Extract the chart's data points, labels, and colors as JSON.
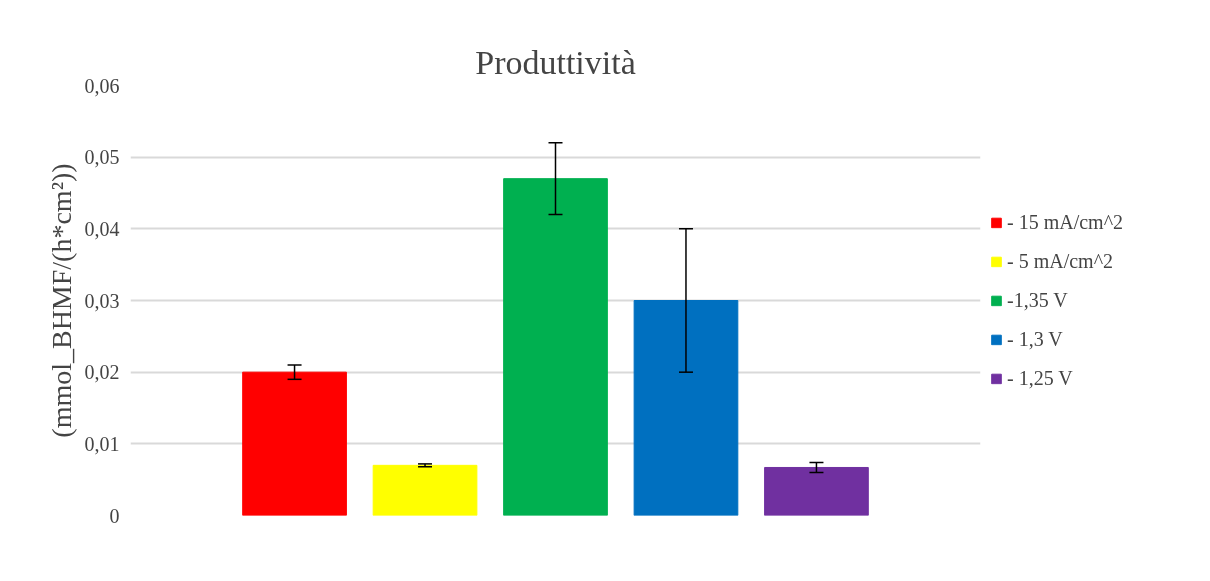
{
  "chart_data": {
    "type": "bar",
    "title": "Produttività",
    "ylabel": "(mmol_BHMF/(h*cm²))",
    "categories": [
      null
    ],
    "series": [
      {
        "name": "- 15 mA/cm^2",
        "color": "#ff0000",
        "values": [
          0.02
        ],
        "errors": [
          0.001
        ]
      },
      {
        "name": "- 5 mA/cm^2",
        "color": "#ffff00",
        "values": [
          0.007
        ],
        "errors": [
          0.0002
        ]
      },
      {
        "name": "-1,35 V",
        "color": "#00b050",
        "values": [
          0.047
        ],
        "errors": [
          0.005
        ]
      },
      {
        "name": "- 1,3 V",
        "color": "#0070c0",
        "values": [
          0.03
        ],
        "errors": [
          0.01
        ]
      },
      {
        "name": "- 1,25 V",
        "color": "#7030a0",
        "values": [
          0.0067
        ],
        "errors": [
          0.0007
        ]
      }
    ],
    "ylim": [
      0,
      0.06
    ],
    "yticks": [
      {
        "value": 0,
        "label": "0"
      },
      {
        "value": 0.01,
        "label": "0,01"
      },
      {
        "value": 0.02,
        "label": "0,02"
      },
      {
        "value": 0.03,
        "label": "0,03"
      },
      {
        "value": 0.04,
        "label": "0,04"
      },
      {
        "value": 0.05,
        "label": "0,05"
      },
      {
        "value": 0.06,
        "label": "0,06"
      }
    ],
    "grid": "y",
    "legend": "right"
  }
}
